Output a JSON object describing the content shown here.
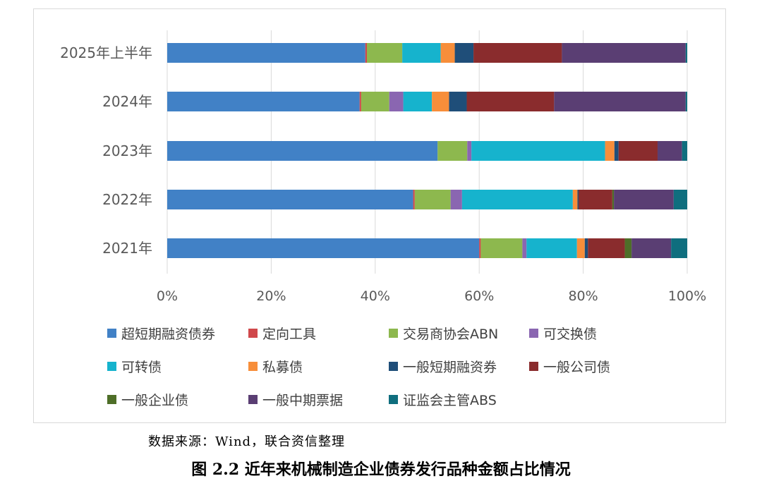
{
  "source_note": "数据来源：Wind，联合资信整理",
  "caption": "图 2.2    近年来机械制造企业债券发行品种金额占比情况",
  "chart_data": {
    "type": "bar",
    "orientation": "horizontal",
    "stacked": true,
    "percent": true,
    "categories": [
      "2025年上半年",
      "2024年",
      "2023年",
      "2022年",
      "2021年"
    ],
    "x_ticks": [
      "0%",
      "20%",
      "40%",
      "60%",
      "80%",
      "100%"
    ],
    "xlim": [
      0,
      100
    ],
    "gridlines": true,
    "legend_position": "bottom",
    "series": [
      {
        "name": "超短期融资债券",
        "color": "#4181C6",
        "values": [
          38.1,
          37.0,
          52.0,
          47.3,
          60.0
        ]
      },
      {
        "name": "定向工具",
        "color": "#D0484B",
        "values": [
          0.3,
          0.3,
          0.0,
          0.3,
          0.3
        ]
      },
      {
        "name": "交易商协会ABN",
        "color": "#8DB84E",
        "values": [
          6.8,
          5.4,
          5.7,
          6.9,
          8.0
        ]
      },
      {
        "name": "可交换债",
        "color": "#8A66B1",
        "values": [
          0.0,
          2.7,
          0.8,
          2.2,
          0.8
        ]
      },
      {
        "name": "可转债",
        "color": "#16B3CD",
        "values": [
          7.4,
          5.5,
          25.7,
          21.3,
          9.7
        ]
      },
      {
        "name": "私募债",
        "color": "#F78E3A",
        "values": [
          2.7,
          3.3,
          1.8,
          0.9,
          1.5
        ]
      },
      {
        "name": "一般短期融资券",
        "color": "#1F4E79",
        "values": [
          3.6,
          3.4,
          0.8,
          0.2,
          0.6
        ]
      },
      {
        "name": "一般公司债",
        "color": "#8A2C2D",
        "values": [
          17.0,
          16.8,
          7.5,
          6.5,
          7.1
        ]
      },
      {
        "name": "一般企业债",
        "color": "#4E6E28",
        "values": [
          0.0,
          0.0,
          0.0,
          0.3,
          1.3
        ]
      },
      {
        "name": "一般中期票据",
        "color": "#5A3E73",
        "values": [
          23.8,
          25.3,
          4.7,
          11.5,
          7.6
        ]
      },
      {
        "name": "证监会主管ABS",
        "color": "#0F6E7E",
        "values": [
          0.3,
          0.3,
          1.0,
          2.6,
          3.1
        ]
      }
    ]
  }
}
